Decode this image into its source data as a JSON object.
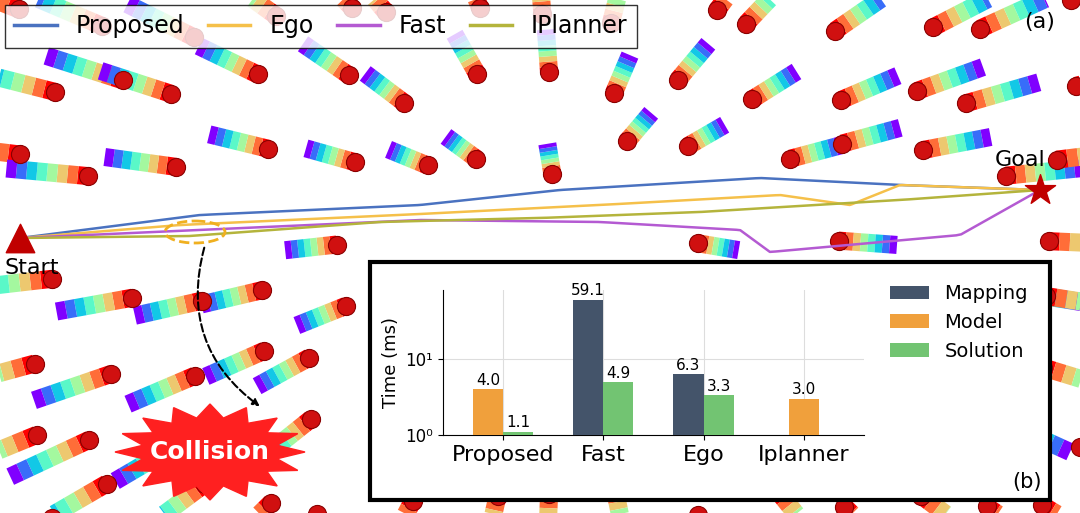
{
  "scene": {
    "panel_label": "(a)",
    "trajectories": [
      {
        "name": "Proposed",
        "color": "#4a72c0"
      },
      {
        "name": "Ego",
        "color": "#f5c04a"
      },
      {
        "name": "Fast",
        "color": "#b45ad2"
      },
      {
        "name": "IPlanner",
        "color": "#b4b43c"
      }
    ],
    "start_label": "Start",
    "goal_label": "Goal",
    "collision_label": "Collision"
  },
  "chart_data": {
    "type": "bar",
    "panel_label": "(b)",
    "y_label": "Time (ms)",
    "categories": [
      "Proposed",
      "Fast",
      "Ego",
      "Iplanner"
    ],
    "series": [
      {
        "name": "Mapping",
        "color": "#44546a",
        "values": [
          null,
          59.1,
          6.3,
          null
        ]
      },
      {
        "name": "Model",
        "color": "#f0a03c",
        "values": [
          4.0,
          null,
          null,
          3.0
        ]
      },
      {
        "name": "Solution",
        "color": "#72c472",
        "values": [
          1.1,
          4.9,
          3.3,
          null
        ]
      }
    ],
    "log": "y",
    "ylim": [
      1,
      80
    ],
    "yticks": [
      {
        "value": 1,
        "label": "10⁰"
      },
      {
        "value": 10,
        "label": "10¹"
      }
    ],
    "grid": true,
    "legend": "upper right",
    "data_labels": true
  }
}
